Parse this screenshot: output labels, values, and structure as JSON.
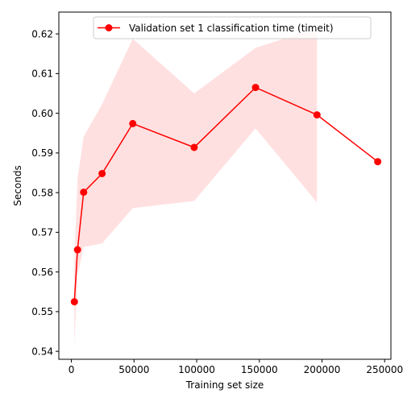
{
  "chart_data": {
    "type": "line",
    "title": "",
    "xlabel": "Training set size",
    "ylabel": "Seconds",
    "xlim": [
      -10000,
      255000
    ],
    "ylim": [
      0.538,
      0.6255
    ],
    "xticks": [
      0,
      50000,
      100000,
      150000,
      200000,
      250000
    ],
    "xtick_labels": [
      "0",
      "50000",
      "100000",
      "150000",
      "200000",
      "250000"
    ],
    "yticks": [
      0.54,
      0.55,
      0.56,
      0.57,
      0.58,
      0.59,
      0.6,
      0.61,
      0.62
    ],
    "ytick_labels": [
      "0.54",
      "0.55",
      "0.56",
      "0.57",
      "0.58",
      "0.59",
      "0.60",
      "0.61",
      "0.62"
    ],
    "grid": false,
    "legend_position": "top-right",
    "series": [
      {
        "name": "Validation set 1 classification time (timeit)",
        "color": "#ff0000",
        "marker": "circle",
        "x": [
          2400,
          4900,
          9800,
          24500,
          49000,
          98000,
          147000,
          196000,
          244500
        ],
        "y": [
          0.5525,
          0.5656,
          0.5801,
          0.5848,
          0.5974,
          0.5914,
          0.6065,
          0.5996,
          0.5878
        ]
      }
    ],
    "band": {
      "color": "#ff0000",
      "opacity": 0.12,
      "x": [
        2400,
        4900,
        9800,
        24500,
        49000,
        98000,
        147000,
        196000
      ],
      "lower": [
        0.5416,
        0.5591,
        0.5663,
        0.5672,
        0.5761,
        0.5779,
        0.5962,
        0.5775
      ],
      "upper": [
        0.5632,
        0.5835,
        0.5941,
        0.6023,
        0.6188,
        0.605,
        0.6165,
        0.6215
      ]
    }
  }
}
